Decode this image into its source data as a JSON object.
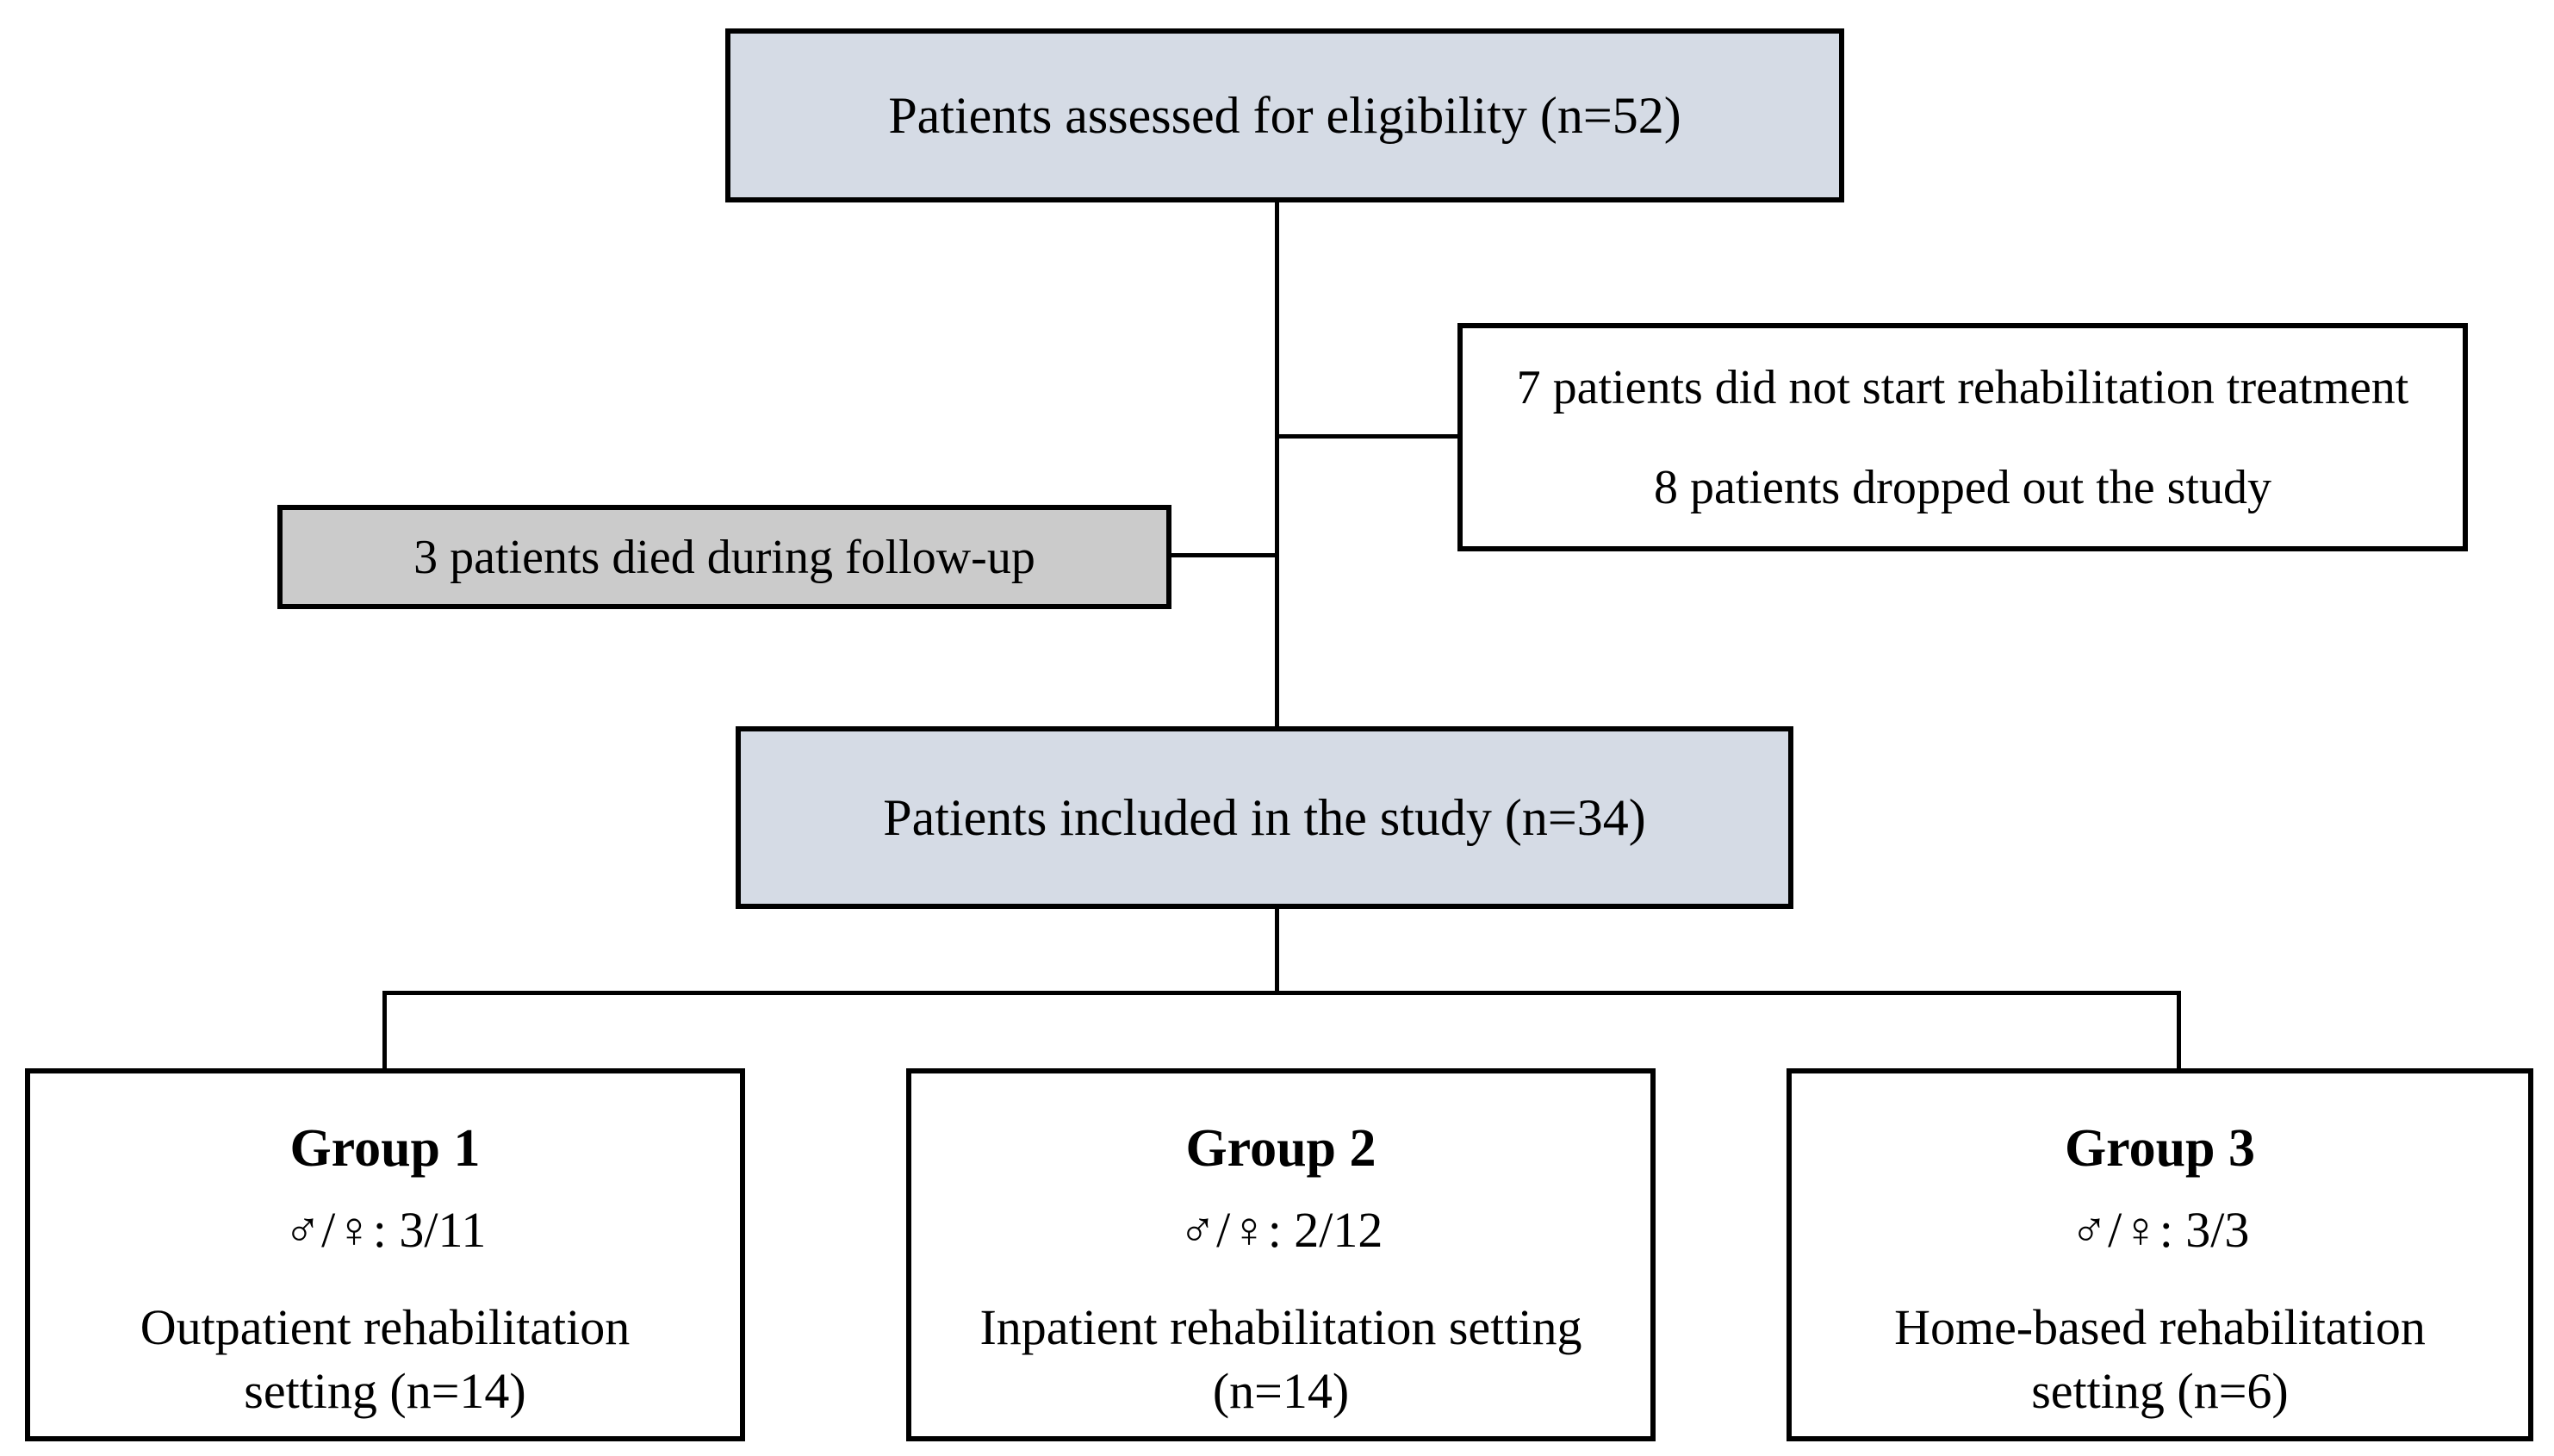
{
  "diagram": {
    "assessed": {
      "text": "Patients assessed for eligibility (n=52)"
    },
    "excluded": {
      "lines": [
        "7 patients did not start rehabilitation treatment",
        "8 patients dropped out the study"
      ]
    },
    "died": {
      "text": "3 patients died during follow-up"
    },
    "included": {
      "text": "Patients included in the study (n=34)"
    },
    "groups": [
      {
        "title": "Group 1",
        "sex_ratio": "♂/♀: 3/11",
        "setting_lines": [
          "Outpatient rehabilitation",
          "setting (n=14)"
        ]
      },
      {
        "title": "Group 2",
        "sex_ratio": "♂/♀: 2/12",
        "setting_lines": [
          "Inpatient rehabilitation setting",
          "(n=14)"
        ]
      },
      {
        "title": "Group 3",
        "sex_ratio": "♂/♀: 3/3",
        "setting_lines": [
          "Home-based rehabilitation",
          "setting (n=6)"
        ]
      }
    ],
    "colors": {
      "node_fill_blue": "#d5dbe5",
      "node_fill_gray": "#cbcbcb",
      "node_fill_white": "#ffffff",
      "line_color": "#000000"
    }
  }
}
